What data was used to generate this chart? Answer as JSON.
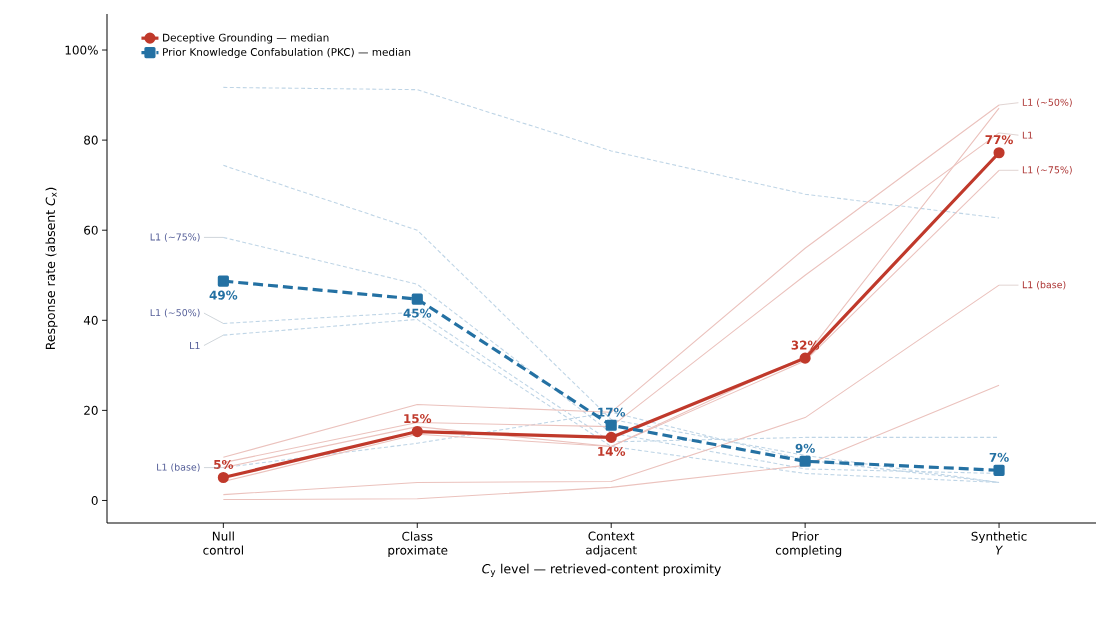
{
  "chart_data": {
    "type": "line",
    "xlabel": "*C*$_{y}$ level — retrieved-content proximity",
    "ylabel": "Response rate  (absent *C*$_{x}$)",
    "categories": [
      "Null control",
      "Class proximate",
      "Context adjacent",
      "Prior completing",
      "Synthetic *Y*"
    ],
    "ylim": [
      -5,
      108
    ],
    "yticks": [
      0,
      20,
      40,
      60,
      80,
      {
        "value": 100,
        "label": "100%"
      }
    ],
    "legend": "top left",
    "series": [
      {
        "color": "#bfd5e6",
        "line_style": "dashed",
        "marker": "none",
        "values": [
          91.7,
          91.2,
          77.6,
          68,
          62.7
        ]
      },
      {
        "color": "#bfd5e6",
        "line_style": "dashed",
        "marker": "none",
        "values": [
          74.4,
          60,
          18,
          10,
          4
        ]
      },
      {
        "name": "L1 (~75%)",
        "color": "#bfd5e6",
        "line_style": "dashed",
        "marker": "none",
        "values": [
          58.4,
          48,
          15,
          7,
          6
        ]
      },
      {
        "name": "L1 (~50%)",
        "color": "#bfd5e6",
        "line_style": "dashed",
        "marker": "none",
        "values": [
          39.3,
          41.8,
          13,
          14,
          14
        ]
      },
      {
        "name": "L1",
        "color": "#bfd5e6",
        "line_style": "dashed",
        "marker": "none",
        "values": [
          36.7,
          40.2,
          12,
          6,
          4
        ]
      },
      {
        "name": "L1 (base)",
        "color": "#bfd5e6",
        "line_style": "dashed",
        "marker": "none",
        "values": [
          7.3,
          12.7,
          19.6,
          9,
          4
        ]
      },
      {
        "name": "L1 (~50%)",
        "color": "#ebc2bd",
        "line_style": "solid",
        "marker": "none",
        "values": [
          9.6,
          21.3,
          19.6,
          56,
          87.8
        ]
      },
      {
        "color": "#ebc2bd",
        "line_style": "solid",
        "marker": "none",
        "values": [
          7.3,
          16.4,
          12,
          32,
          87.1
        ]
      },
      {
        "name": "L1",
        "color": "#ebc2bd",
        "line_style": "solid",
        "marker": "none",
        "values": [
          8.4,
          17.3,
          16.4,
          50,
          81.6
        ]
      },
      {
        "name": "L1 (~75%)",
        "color": "#ebc2bd",
        "line_style": "solid",
        "marker": "none",
        "values": [
          4.2,
          14.7,
          12,
          31,
          73.3
        ]
      },
      {
        "name": "L1 (base)",
        "color": "#ebc2bd",
        "line_style": "solid",
        "marker": "none",
        "values": [
          1.3,
          4,
          4.2,
          18.4,
          47.8
        ]
      },
      {
        "color": "#ebc2bd",
        "line_style": "solid",
        "marker": "none",
        "values": [
          0.2,
          0.4,
          2.9,
          7.8,
          25.6
        ]
      },
      {
        "name": "Deceptive Grounding — median",
        "color": "#c0392b",
        "line_style": "solid",
        "marker": "circle",
        "values": [
          5.1,
          15.3,
          14,
          31.6,
          77.2
        ],
        "value_labels": [
          "5%",
          "15%",
          "14%",
          "32%",
          "77%"
        ]
      },
      {
        "name": "Prior Knowledge Confabulation (PKC) — median",
        "color": "#2471a3",
        "line_style": "dashed",
        "marker": "square",
        "values": [
          48.7,
          44.7,
          16.7,
          8.7,
          6.7
        ],
        "value_labels": [
          "49%",
          "45%",
          "17%",
          "9%",
          "7%"
        ]
      }
    ]
  }
}
